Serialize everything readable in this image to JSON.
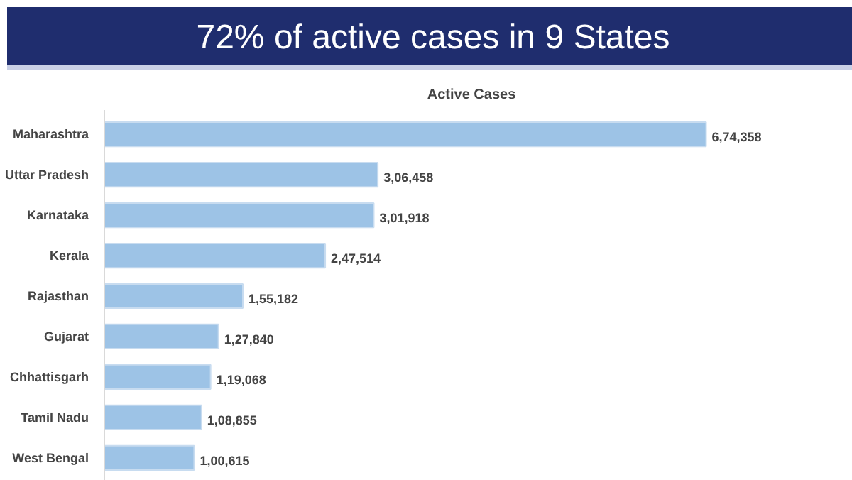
{
  "chart_data": {
    "type": "bar",
    "orientation": "horizontal",
    "tick_labels": "y",
    "title": "72% of active cases in 9 States",
    "subtitle": "Active Cases",
    "categories": [
      "Maharashtra",
      "Uttar Pradesh",
      "Karnataka",
      "Kerala",
      "Rajasthan",
      "Gujarat",
      "Chhattisgarh",
      "Tamil Nadu",
      "West Bengal"
    ],
    "values": [
      674358,
      306458,
      301918,
      247514,
      155182,
      127840,
      119068,
      108855,
      100615
    ],
    "value_labels": [
      "6,74,358",
      "3,06,458",
      "3,01,918",
      "2,47,514",
      "1,55,182",
      "1,27,840",
      "1,19,068",
      "1,08,855",
      "1,00,615"
    ],
    "color": "#9dc3e6"
  }
}
